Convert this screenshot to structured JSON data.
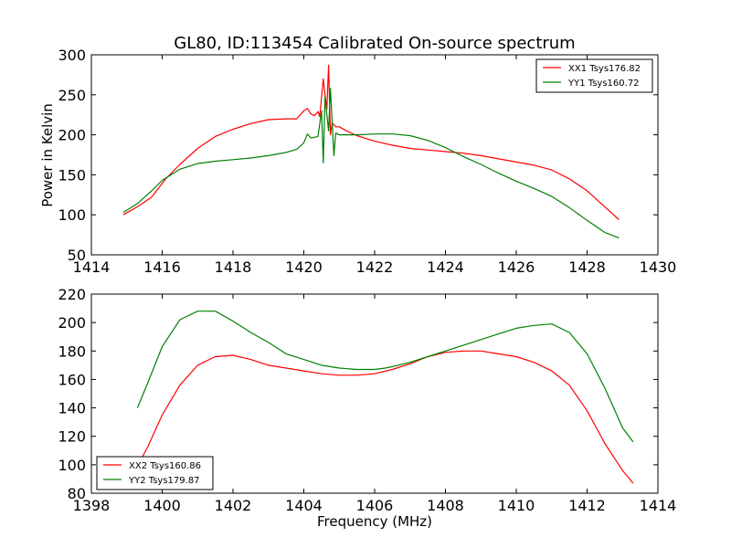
{
  "figure": {
    "title": "GL80, ID:113454 Calibrated On-source spectrum"
  },
  "chart_data": [
    {
      "type": "line",
      "title": "GL80, ID:113454 Calibrated On-source spectrum",
      "xlabel": "",
      "ylabel": "Power in Kelvin",
      "xlim": [
        1414,
        1430
      ],
      "ylim": [
        50,
        300
      ],
      "xticks": [
        1414,
        1416,
        1418,
        1420,
        1422,
        1424,
        1426,
        1428,
        1430
      ],
      "yticks": [
        50,
        100,
        150,
        200,
        250,
        300
      ],
      "legend_loc": "upper right",
      "series": [
        {
          "name": "XX1 Tsys176.82",
          "color": "#ff0000",
          "points": [
            [
              1414.9,
              100
            ],
            [
              1415.3,
              110
            ],
            [
              1415.7,
              122
            ],
            [
              1416.1,
              145
            ],
            [
              1416.5,
              163
            ],
            [
              1417.0,
              183
            ],
            [
              1417.5,
              198
            ],
            [
              1418.0,
              207
            ],
            [
              1418.5,
              214
            ],
            [
              1419.0,
              219
            ],
            [
              1419.5,
              220
            ],
            [
              1419.8,
              220
            ],
            [
              1420.0,
              230
            ],
            [
              1420.1,
              233
            ],
            [
              1420.2,
              226
            ],
            [
              1420.3,
              224
            ],
            [
              1420.4,
              229
            ],
            [
              1420.45,
              223
            ],
            [
              1420.55,
              270
            ],
            [
              1420.6,
              250
            ],
            [
              1420.65,
              232
            ],
            [
              1420.7,
              287
            ],
            [
              1420.75,
              200
            ],
            [
              1420.8,
              215
            ],
            [
              1420.9,
              210
            ],
            [
              1421.0,
              210
            ],
            [
              1421.2,
              205
            ],
            [
              1421.5,
              199
            ],
            [
              1422.0,
              192
            ],
            [
              1422.5,
              187
            ],
            [
              1423.0,
              183
            ],
            [
              1423.5,
              181
            ],
            [
              1424.0,
              179
            ],
            [
              1424.5,
              177
            ],
            [
              1425.0,
              174
            ],
            [
              1425.5,
              170
            ],
            [
              1426.0,
              166
            ],
            [
              1426.5,
              162
            ],
            [
              1427.0,
              156
            ],
            [
              1427.5,
              145
            ],
            [
              1428.0,
              130
            ],
            [
              1428.5,
              110
            ],
            [
              1428.9,
              94
            ]
          ]
        },
        {
          "name": "YY1 Tsys160.72",
          "color": "#008000",
          "points": [
            [
              1414.9,
              103
            ],
            [
              1415.3,
              114
            ],
            [
              1415.7,
              130
            ],
            [
              1416.0,
              143
            ],
            [
              1416.5,
              157
            ],
            [
              1417.0,
              164
            ],
            [
              1417.5,
              167
            ],
            [
              1418.0,
              169
            ],
            [
              1418.5,
              171
            ],
            [
              1419.0,
              174
            ],
            [
              1419.5,
              178
            ],
            [
              1419.8,
              182
            ],
            [
              1420.0,
              190
            ],
            [
              1420.1,
              201
            ],
            [
              1420.2,
              196
            ],
            [
              1420.4,
              198
            ],
            [
              1420.5,
              230
            ],
            [
              1420.55,
              165
            ],
            [
              1420.6,
              247
            ],
            [
              1420.7,
              205
            ],
            [
              1420.75,
              258
            ],
            [
              1420.85,
              174
            ],
            [
              1420.9,
              202
            ],
            [
              1421.0,
              200
            ],
            [
              1421.5,
              200
            ],
            [
              1422.0,
              201
            ],
            [
              1422.5,
              201
            ],
            [
              1423.0,
              199
            ],
            [
              1423.5,
              193
            ],
            [
              1424.0,
              184
            ],
            [
              1424.5,
              173
            ],
            [
              1425.0,
              163
            ],
            [
              1425.5,
              152
            ],
            [
              1426.0,
              142
            ],
            [
              1426.5,
              133
            ],
            [
              1427.0,
              123
            ],
            [
              1427.5,
              109
            ],
            [
              1428.0,
              93
            ],
            [
              1428.5,
              78
            ],
            [
              1428.9,
              71
            ]
          ]
        }
      ]
    },
    {
      "type": "line",
      "xlabel": "Frequency (MHz)",
      "ylabel": "",
      "xlim": [
        1398,
        1414
      ],
      "ylim": [
        80,
        220
      ],
      "xticks": [
        1398,
        1400,
        1402,
        1404,
        1406,
        1408,
        1410,
        1412,
        1414
      ],
      "yticks": [
        80,
        100,
        120,
        140,
        160,
        180,
        200,
        220
      ],
      "legend_loc": "lower left",
      "series": [
        {
          "name": "XX2 Tsys160.86",
          "color": "#ff0000",
          "points": [
            [
              1399.3,
              99
            ],
            [
              1399.6,
              113
            ],
            [
              1400.0,
              135
            ],
            [
              1400.5,
              156
            ],
            [
              1401.0,
              170
            ],
            [
              1401.5,
              176
            ],
            [
              1402.0,
              177
            ],
            [
              1402.5,
              174
            ],
            [
              1403.0,
              170
            ],
            [
              1403.5,
              168
            ],
            [
              1404.0,
              166
            ],
            [
              1404.5,
              164
            ],
            [
              1405.0,
              163
            ],
            [
              1405.5,
              163
            ],
            [
              1406.0,
              164
            ],
            [
              1406.5,
              167
            ],
            [
              1407.0,
              171
            ],
            [
              1407.5,
              176
            ],
            [
              1408.0,
              179
            ],
            [
              1408.5,
              180
            ],
            [
              1409.0,
              180
            ],
            [
              1409.5,
              178
            ],
            [
              1410.0,
              176
            ],
            [
              1410.5,
              172
            ],
            [
              1411.0,
              166
            ],
            [
              1411.5,
              156
            ],
            [
              1412.0,
              138
            ],
            [
              1412.5,
              115
            ],
            [
              1413.0,
              96
            ],
            [
              1413.3,
              87
            ]
          ]
        },
        {
          "name": "YY2 Tsys179.87",
          "color": "#008000",
          "points": [
            [
              1399.3,
              140
            ],
            [
              1399.6,
              158
            ],
            [
              1400.0,
              183
            ],
            [
              1400.5,
              202
            ],
            [
              1401.0,
              208
            ],
            [
              1401.5,
              208
            ],
            [
              1402.0,
              201
            ],
            [
              1402.5,
              193
            ],
            [
              1403.0,
              186
            ],
            [
              1403.5,
              178
            ],
            [
              1404.0,
              174
            ],
            [
              1404.5,
              170
            ],
            [
              1405.0,
              168
            ],
            [
              1405.5,
              167
            ],
            [
              1406.0,
              167
            ],
            [
              1406.3,
              168
            ],
            [
              1406.5,
              169
            ],
            [
              1407.0,
              172
            ],
            [
              1407.5,
              176
            ],
            [
              1408.0,
              180
            ],
            [
              1408.5,
              184
            ],
            [
              1409.0,
              188
            ],
            [
              1409.5,
              192
            ],
            [
              1410.0,
              196
            ],
            [
              1410.5,
              198
            ],
            [
              1411.0,
              199
            ],
            [
              1411.5,
              193
            ],
            [
              1412.0,
              178
            ],
            [
              1412.5,
              154
            ],
            [
              1413.0,
              126
            ],
            [
              1413.3,
              116
            ]
          ]
        }
      ]
    }
  ]
}
